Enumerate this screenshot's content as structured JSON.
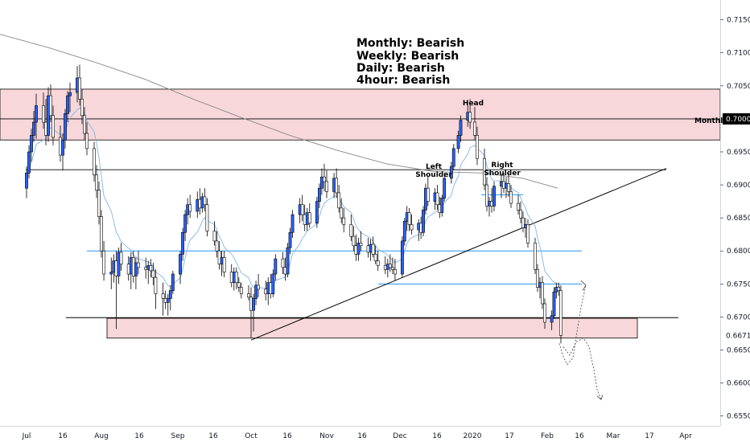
{
  "chart_data": {
    "type": "candlestick",
    "y_axis": {
      "range": [
        0.6535,
        0.718
      ],
      "ticks": [
        "0.71500",
        "0.71000",
        "0.70500",
        "0.69500",
        "0.69000",
        "0.68500",
        "0.68000",
        "0.67500",
        "0.67000",
        "0.66500",
        "0.66000",
        "0.65500"
      ],
      "highlighted_price": "0.70000",
      "special_price": "0.66717"
    },
    "x_axis": {
      "ticks": [
        "Jul",
        "16",
        "Aug",
        "16",
        "Sep",
        "16",
        "Oct",
        "16",
        "Nov",
        "16",
        "Dec",
        "16",
        "2020",
        "17",
        "Feb",
        "16",
        "Mar",
        "17",
        "Apr"
      ]
    },
    "bias": [
      "Monthly: Bearish",
      "Weekly: Bearish",
      "Daily: Bearish",
      "4hour: Bearish"
    ],
    "labels": {
      "head": "Head",
      "left_shoulder": [
        "Left",
        "Shoulder"
      ],
      "right_shoulder": [
        "Right",
        "Shoulder"
      ],
      "monthly": "Monthly"
    },
    "zones": [
      {
        "top": 0.7045,
        "bottom": 0.6968
      },
      {
        "top": 0.6698,
        "bottom": 0.6668
      }
    ],
    "levels": [
      {
        "price": 0.7,
        "color": "#000000"
      },
      {
        "price": 0.6923,
        "color": "#000000"
      },
      {
        "price": 0.6699,
        "color": "#000000"
      },
      {
        "price": 0.68,
        "color": "#2196f3"
      },
      {
        "price": 0.675,
        "color": "#2196f3"
      }
    ],
    "trendline": {
      "from": [
        "Oct",
        0.6665
      ],
      "to": [
        "Mar 17",
        0.6925
      ]
    },
    "colors": {
      "bull": "#2962ff",
      "bear": "#ffffff",
      "zone": "#f8d7da",
      "ema": "#7fb6e6",
      "sma": "#888888"
    },
    "candles": [
      [
        "Jul 1",
        0.6895,
        0.6928,
        0.688,
        0.6918
      ],
      [
        "Jul 2",
        0.6918,
        0.696,
        0.691,
        0.695
      ],
      [
        "Jul 3",
        0.695,
        0.6985,
        0.6935,
        0.6975
      ],
      [
        "Jul 4",
        0.6975,
        0.7012,
        0.6965,
        0.6995
      ],
      [
        "Jul 5",
        0.6995,
        0.7038,
        0.697,
        0.702
      ],
      [
        "Jul 8",
        0.702,
        0.704,
        0.6985,
        0.6995
      ],
      [
        "Jul 9",
        0.6995,
        0.703,
        0.696,
        0.6975
      ],
      [
        "Jul 10",
        0.6975,
        0.7048,
        0.6965,
        0.7035
      ],
      [
        "Jul 11",
        0.7035,
        0.7052,
        0.6995,
        0.7005
      ],
      [
        "Jul 12",
        0.7005,
        0.702,
        0.696,
        0.6972
      ],
      [
        "Jul 15",
        0.6972,
        0.699,
        0.6935,
        0.6945
      ],
      [
        "Jul 16",
        0.6945,
        0.6978,
        0.6922,
        0.6968
      ],
      [
        "Jul 17",
        0.6968,
        0.7015,
        0.6955,
        0.7008
      ],
      [
        "Jul 18",
        0.7008,
        0.7042,
        0.6995,
        0.7035
      ],
      [
        "Jul 19",
        0.7035,
        0.7055,
        0.701,
        0.704
      ],
      [
        "Jul 22",
        0.704,
        0.708,
        0.7025,
        0.7062
      ],
      [
        "Jul 23",
        0.7062,
        0.7082,
        0.702,
        0.703
      ],
      [
        "Jul 24",
        0.703,
        0.7045,
        0.6992,
        0.7005
      ],
      [
        "Jul 25",
        0.7005,
        0.7018,
        0.6968,
        0.6978
      ],
      [
        "Jul 26",
        0.6978,
        0.6995,
        0.6945,
        0.6955
      ],
      [
        "Jul 29",
        0.6955,
        0.6965,
        0.6905,
        0.6915
      ],
      [
        "Jul 30",
        0.6915,
        0.693,
        0.688,
        0.6892
      ],
      [
        "Jul 31",
        0.6892,
        0.6905,
        0.684,
        0.6852
      ],
      [
        "Aug 1",
        0.6852,
        0.6862,
        0.679,
        0.68
      ],
      [
        "Aug 2",
        0.68,
        0.6815,
        0.6755,
        0.6765
      ],
      [
        "Aug 5",
        0.6765,
        0.679,
        0.6742,
        0.6768
      ],
      [
        "Aug 6",
        0.6768,
        0.6795,
        0.6752,
        0.6785
      ],
      [
        "Aug 7",
        0.6785,
        0.68,
        0.6682,
        0.6762
      ],
      [
        "Aug 8",
        0.6762,
        0.6805,
        0.675,
        0.6798
      ],
      [
        "Aug 9",
        0.6798,
        0.6812,
        0.677,
        0.678
      ],
      [
        "Aug 12",
        0.678,
        0.6792,
        0.6755,
        0.6765
      ],
      [
        "Aug 13",
        0.6765,
        0.6798,
        0.6742,
        0.679
      ],
      [
        "Aug 14",
        0.679,
        0.68,
        0.6752,
        0.6762
      ],
      [
        "Aug 15",
        0.6762,
        0.679,
        0.6742,
        0.6782
      ],
      [
        "Aug 16",
        0.6782,
        0.68,
        0.6765,
        0.6775
      ],
      [
        "Aug 19",
        0.6775,
        0.679,
        0.6758,
        0.6772
      ],
      [
        "Aug 20",
        0.6772,
        0.6785,
        0.675,
        0.6778
      ],
      [
        "Aug 21",
        0.6778,
        0.6788,
        0.676,
        0.677
      ],
      [
        "Aug 22",
        0.677,
        0.6782,
        0.6748,
        0.676
      ],
      [
        "Aug 23",
        0.676,
        0.6772,
        0.6712,
        0.6735
      ],
      [
        "Aug 26",
        0.6735,
        0.6752,
        0.6702,
        0.6728
      ],
      [
        "Aug 27",
        0.6728,
        0.674,
        0.6712,
        0.6722
      ],
      [
        "Aug 28",
        0.6722,
        0.6735,
        0.6702,
        0.6728
      ],
      [
        "Aug 29",
        0.6728,
        0.6748,
        0.671,
        0.674
      ],
      [
        "Aug 30",
        0.674,
        0.677,
        0.6735,
        0.6765
      ],
      [
        "Sep 2",
        0.6765,
        0.68,
        0.675,
        0.6795
      ],
      [
        "Sep 3",
        0.6795,
        0.6835,
        0.6785,
        0.6828
      ],
      [
        "Sep 4",
        0.6828,
        0.6862,
        0.6815,
        0.6855
      ],
      [
        "Sep 5",
        0.6855,
        0.688,
        0.684,
        0.687
      ],
      [
        "Sep 6",
        0.687,
        0.6885,
        0.685,
        0.686
      ],
      [
        "Sep 9",
        0.686,
        0.689,
        0.685,
        0.6878
      ],
      [
        "Sep 10",
        0.6878,
        0.6895,
        0.6855,
        0.6865
      ],
      [
        "Sep 11",
        0.6865,
        0.6888,
        0.6858,
        0.6882
      ],
      [
        "Sep 12",
        0.6882,
        0.6895,
        0.686,
        0.687
      ],
      [
        "Sep 13",
        0.687,
        0.688,
        0.6822,
        0.683
      ],
      [
        "Sep 16",
        0.683,
        0.6845,
        0.6808,
        0.6815
      ],
      [
        "Sep 17",
        0.6815,
        0.683,
        0.679,
        0.68
      ],
      [
        "Sep 18",
        0.68,
        0.6815,
        0.6772,
        0.678
      ],
      [
        "Sep 19",
        0.678,
        0.68,
        0.6762,
        0.679
      ],
      [
        "Sep 20",
        0.679,
        0.68,
        0.676,
        0.6768
      ],
      [
        "Sep 23",
        0.6768,
        0.678,
        0.6745,
        0.6752
      ],
      [
        "Sep 24",
        0.6752,
        0.6775,
        0.674,
        0.6768
      ],
      [
        "Sep 25",
        0.6768,
        0.6775,
        0.6742,
        0.6752
      ],
      [
        "Sep 26",
        0.6752,
        0.676,
        0.6738,
        0.6745
      ],
      [
        "Sep 27",
        0.6745,
        0.6752,
        0.6728,
        0.6735
      ],
      [
        "Sep 30",
        0.6735,
        0.6748,
        0.6725,
        0.673
      ],
      [
        "Oct 1",
        0.673,
        0.6745,
        0.6668,
        0.671
      ],
      [
        "Oct 2",
        0.671,
        0.6735,
        0.6678,
        0.6728
      ],
      [
        "Oct 3",
        0.6728,
        0.6755,
        0.6718,
        0.6748
      ],
      [
        "Oct 4",
        0.6748,
        0.6765,
        0.673,
        0.6742
      ],
      [
        "Oct 7",
        0.6742,
        0.6755,
        0.6725,
        0.6735
      ],
      [
        "Oct 8",
        0.6735,
        0.676,
        0.6718,
        0.6752
      ],
      [
        "Oct 9",
        0.6752,
        0.6765,
        0.6728,
        0.6735
      ],
      [
        "Oct 10",
        0.6735,
        0.6772,
        0.673,
        0.6765
      ],
      [
        "Oct 11",
        0.6765,
        0.6795,
        0.6755,
        0.6788
      ],
      [
        "Oct 14",
        0.6788,
        0.6798,
        0.6765,
        0.6775
      ],
      [
        "Oct 15",
        0.6775,
        0.679,
        0.6755,
        0.6765
      ],
      [
        "Oct 16",
        0.6765,
        0.6812,
        0.676,
        0.6805
      ],
      [
        "Oct 17",
        0.6805,
        0.6835,
        0.6795,
        0.6828
      ],
      [
        "Oct 18",
        0.6828,
        0.6862,
        0.682,
        0.6855
      ],
      [
        "Oct 21",
        0.6855,
        0.688,
        0.6842,
        0.687
      ],
      [
        "Oct 22",
        0.687,
        0.6885,
        0.6845,
        0.6855
      ],
      [
        "Oct 23",
        0.6855,
        0.687,
        0.683,
        0.684
      ],
      [
        "Oct 24",
        0.684,
        0.6865,
        0.683,
        0.6858
      ],
      [
        "Oct 25",
        0.6858,
        0.6872,
        0.6835,
        0.6842
      ],
      [
        "Oct 28",
        0.6842,
        0.6882,
        0.6835,
        0.6875
      ],
      [
        "Oct 29",
        0.6875,
        0.6902,
        0.6865,
        0.6895
      ],
      [
        "Oct 30",
        0.6895,
        0.6925,
        0.6885,
        0.6912
      ],
      [
        "Oct 31",
        0.6912,
        0.6932,
        0.689,
        0.6905
      ],
      [
        "Nov 1",
        0.6905,
        0.6922,
        0.688,
        0.689
      ],
      [
        "Nov 4",
        0.689,
        0.6918,
        0.688,
        0.691
      ],
      [
        "Nov 5",
        0.691,
        0.6925,
        0.688,
        0.6888
      ],
      [
        "Nov 6",
        0.6888,
        0.69,
        0.6858,
        0.6865
      ],
      [
        "Nov 7",
        0.6865,
        0.688,
        0.6842,
        0.685
      ],
      [
        "Nov 8",
        0.685,
        0.6865,
        0.6828,
        0.684
      ],
      [
        "Nov 11",
        0.684,
        0.6855,
        0.6815,
        0.6822
      ],
      [
        "Nov 12",
        0.6822,
        0.6838,
        0.68,
        0.6808
      ],
      [
        "Nov 13",
        0.6808,
        0.6825,
        0.6785,
        0.6795
      ],
      [
        "Nov 14",
        0.6795,
        0.682,
        0.6785,
        0.6812
      ],
      [
        "Nov 15",
        0.6812,
        0.683,
        0.68,
        0.6808
      ],
      [
        "Nov 18",
        0.6808,
        0.682,
        0.679,
        0.6798
      ],
      [
        "Nov 19",
        0.6798,
        0.6818,
        0.6785,
        0.681
      ],
      [
        "Nov 20",
        0.681,
        0.6822,
        0.679,
        0.6795
      ],
      [
        "Nov 21",
        0.6795,
        0.6808,
        0.678,
        0.6785
      ],
      [
        "Nov 22",
        0.6785,
        0.68,
        0.677,
        0.6778
      ],
      [
        "Nov 25",
        0.6778,
        0.6792,
        0.6765,
        0.6772
      ],
      [
        "Nov 26",
        0.6772,
        0.6788,
        0.676,
        0.678
      ],
      [
        "Nov 27",
        0.678,
        0.6795,
        0.6768,
        0.6775
      ],
      [
        "Nov 28",
        0.6775,
        0.679,
        0.6765,
        0.6772
      ],
      [
        "Nov 29",
        0.6772,
        0.6788,
        0.6755,
        0.6765
      ],
      [
        "Dec 2",
        0.6765,
        0.6822,
        0.676,
        0.6815
      ],
      [
        "Dec 3",
        0.6815,
        0.685,
        0.6808,
        0.6845
      ],
      [
        "Dec 4",
        0.6845,
        0.6868,
        0.683,
        0.6858
      ],
      [
        "Dec 5",
        0.6858,
        0.6865,
        0.683,
        0.684
      ],
      [
        "Dec 6",
        0.684,
        0.6855,
        0.6825,
        0.6832
      ],
      [
        "Dec 9",
        0.6832,
        0.6848,
        0.6815,
        0.6842
      ],
      [
        "Dec 10",
        0.6842,
        0.6852,
        0.6818,
        0.6828
      ],
      [
        "Dec 11",
        0.6828,
        0.6868,
        0.6822,
        0.6862
      ],
      [
        "Dec 12",
        0.6862,
        0.6902,
        0.6855,
        0.6895
      ],
      [
        "Dec 13",
        0.6895,
        0.6912,
        0.6868,
        0.6875
      ],
      [
        "Dec 16",
        0.6875,
        0.6895,
        0.6862,
        0.6888
      ],
      [
        "Dec 17",
        0.6888,
        0.69,
        0.6862,
        0.687
      ],
      [
        "Dec 18",
        0.687,
        0.6882,
        0.685,
        0.6858
      ],
      [
        "Dec 19",
        0.6858,
        0.6885,
        0.6852,
        0.688
      ],
      [
        "Dec 20",
        0.688,
        0.6918,
        0.6875,
        0.691
      ],
      [
        "Dec 23",
        0.691,
        0.6935,
        0.6902,
        0.6928
      ],
      [
        "Dec 24",
        0.6928,
        0.6962,
        0.6922,
        0.6955
      ],
      [
        "Dec 26",
        0.6955,
        0.6982,
        0.6948,
        0.6975
      ],
      [
        "Dec 27",
        0.6975,
        0.7005,
        0.6965,
        0.6998
      ],
      [
        "Dec 30",
        0.6998,
        0.7025,
        0.6988,
        0.701
      ],
      [
        "Dec 31",
        0.701,
        0.703,
        0.6985,
        0.6995
      ],
      [
        "Jan 2",
        0.6995,
        0.7018,
        0.6968,
        0.6975
      ],
      [
        "Jan 3",
        0.6975,
        0.6988,
        0.693,
        0.694
      ],
      [
        "Jan 6",
        0.694,
        0.6955,
        0.6892,
        0.69
      ],
      [
        "Jan 7",
        0.69,
        0.6912,
        0.686,
        0.6868
      ],
      [
        "Jan 8",
        0.6868,
        0.6882,
        0.6852,
        0.6875
      ],
      [
        "Jan 9",
        0.6875,
        0.6895,
        0.6858,
        0.6868
      ],
      [
        "Jan 10",
        0.6868,
        0.6905,
        0.686,
        0.6898
      ],
      [
        "Jan 13",
        0.6898,
        0.6915,
        0.688,
        0.6905
      ],
      [
        "Jan 14",
        0.6905,
        0.6918,
        0.6888,
        0.6895
      ],
      [
        "Jan 15",
        0.6895,
        0.6912,
        0.688,
        0.6902
      ],
      [
        "Jan 16",
        0.6902,
        0.6918,
        0.6882,
        0.689
      ],
      [
        "Jan 17",
        0.689,
        0.69,
        0.6865,
        0.6872
      ],
      [
        "Jan 20",
        0.6872,
        0.6885,
        0.6855,
        0.6862
      ],
      [
        "Jan 21",
        0.6862,
        0.6875,
        0.6842,
        0.685
      ],
      [
        "Jan 22",
        0.685,
        0.686,
        0.6828,
        0.6835
      ],
      [
        "Jan 23",
        0.6835,
        0.685,
        0.682,
        0.684
      ],
      [
        "Jan 24",
        0.684,
        0.6848,
        0.6805,
        0.6812
      ],
      [
        "Jan 27",
        0.6812,
        0.682,
        0.6765,
        0.6772
      ],
      [
        "Jan 28",
        0.6772,
        0.678,
        0.6738,
        0.6745
      ],
      [
        "Jan 29",
        0.6745,
        0.676,
        0.6728,
        0.6752
      ],
      [
        "Jan 30",
        0.6752,
        0.6762,
        0.6712,
        0.672
      ],
      [
        "Jan 31",
        0.672,
        0.6728,
        0.6682,
        0.6692
      ],
      [
        "Feb 3",
        0.6692,
        0.671,
        0.668,
        0.6702
      ],
      [
        "Feb 4",
        0.6702,
        0.6745,
        0.6698,
        0.6738
      ],
      [
        "Feb 5",
        0.6738,
        0.6752,
        0.6728,
        0.6745
      ],
      [
        "Feb 6",
        0.6745,
        0.6752,
        0.6732,
        0.674
      ],
      [
        "Feb 7",
        0.674,
        0.6748,
        0.666,
        0.6672
      ]
    ]
  }
}
